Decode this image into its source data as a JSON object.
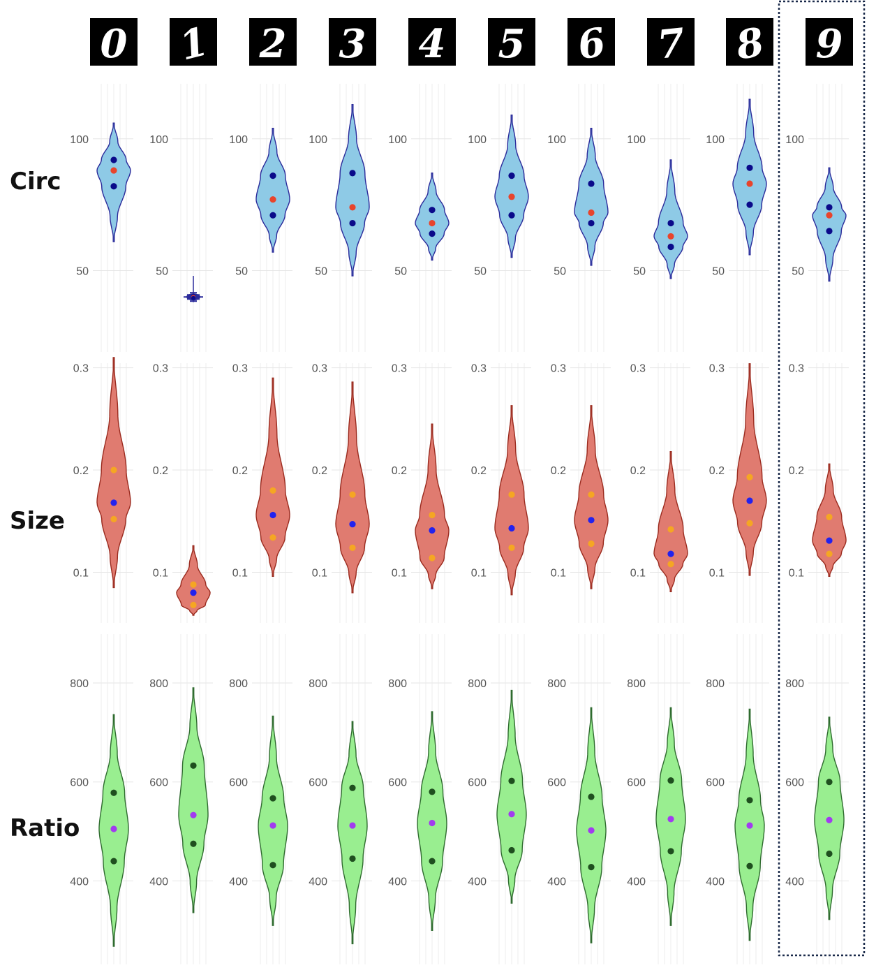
{
  "row_labels": {
    "circ": "Circ",
    "size": "Size",
    "ratio": "Ratio"
  },
  "digits": [
    "0",
    "1",
    "2",
    "3",
    "4",
    "5",
    "6",
    "7",
    "8",
    "9"
  ],
  "highlighted_digit": "9",
  "colors": {
    "circ_fill": "#8ecae6",
    "circ_stroke": "#2a2a9a",
    "circ_mean": "#e8442c",
    "circ_quart": "#0a0a8a",
    "size_fill": "#e07b70",
    "size_stroke": "#9a2a1e",
    "size_mean": "#2222ee",
    "size_quart": "#f5a623",
    "ratio_fill": "#99ee90",
    "ratio_stroke": "#2f6b2f",
    "ratio_mean": "#a23bef",
    "ratio_quart": "#1f4f1f",
    "highlight_box": "#1a2a4a"
  },
  "chart_data": [
    {
      "type": "violin",
      "metric": "Circ",
      "yticks": [
        50,
        100
      ],
      "ylim": [
        17,
        123
      ],
      "categories": [
        "0",
        "1",
        "2",
        "3",
        "4",
        "5",
        "6",
        "7",
        "8",
        "9"
      ],
      "range": [
        [
          61,
          106
        ],
        [
          38,
          48
        ],
        [
          57,
          104
        ],
        [
          48,
          113
        ],
        [
          54,
          87
        ],
        [
          55,
          109
        ],
        [
          52,
          104
        ],
        [
          47,
          92
        ],
        [
          56,
          115
        ],
        [
          46,
          89
        ]
      ],
      "q1": [
        82,
        39.6,
        71,
        68,
        64,
        71,
        68,
        59,
        75,
        65
      ],
      "mean": [
        88,
        40,
        77,
        74,
        68,
        78,
        72,
        63,
        83,
        71
      ],
      "q3": [
        92,
        40.4,
        86,
        87,
        73,
        86,
        83,
        68,
        89,
        74
      ]
    },
    {
      "type": "violin",
      "metric": "Size",
      "yticks": [
        0.1,
        0.2,
        0.3
      ],
      "ylim": [
        0.045,
        0.31
      ],
      "categories": [
        "0",
        "1",
        "2",
        "3",
        "4",
        "5",
        "6",
        "7",
        "8",
        "9"
      ],
      "range": [
        [
          0.085,
          0.31
        ],
        [
          0.058,
          0.126
        ],
        [
          0.096,
          0.29
        ],
        [
          0.08,
          0.286
        ],
        [
          0.084,
          0.245
        ],
        [
          0.078,
          0.263
        ],
        [
          0.084,
          0.263
        ],
        [
          0.081,
          0.218
        ],
        [
          0.097,
          0.304
        ],
        [
          0.096,
          0.206
        ]
      ],
      "q1": [
        0.152,
        0.068,
        0.134,
        0.124,
        0.114,
        0.124,
        0.128,
        0.108,
        0.148,
        0.118
      ],
      "mean": [
        0.168,
        0.08,
        0.156,
        0.147,
        0.141,
        0.143,
        0.151,
        0.118,
        0.17,
        0.131
      ],
      "q3": [
        0.2,
        0.088,
        0.18,
        0.176,
        0.156,
        0.176,
        0.176,
        0.142,
        0.193,
        0.154
      ]
    },
    {
      "type": "violin",
      "metric": "Ratio",
      "yticks": [
        400,
        600,
        800
      ],
      "ylim": [
        220,
        910
      ],
      "categories": [
        "0",
        "1",
        "2",
        "3",
        "4",
        "5",
        "6",
        "7",
        "8",
        "9"
      ],
      "range": [
        [
          268,
          736
        ],
        [
          336,
          790
        ],
        [
          310,
          733
        ],
        [
          273,
          722
        ],
        [
          300,
          742
        ],
        [
          355,
          785
        ],
        [
          275,
          750
        ],
        [
          310,
          750
        ],
        [
          280,
          747
        ],
        [
          322,
          731
        ]
      ],
      "q1": [
        440,
        475,
        432,
        445,
        440,
        462,
        428,
        460,
        430,
        455
      ],
      "mean": [
        505,
        533,
        512,
        512,
        517,
        535,
        502,
        525,
        512,
        523
      ],
      "q3": [
        578,
        633,
        567,
        588,
        580,
        602,
        570,
        603,
        563,
        600
      ]
    }
  ]
}
